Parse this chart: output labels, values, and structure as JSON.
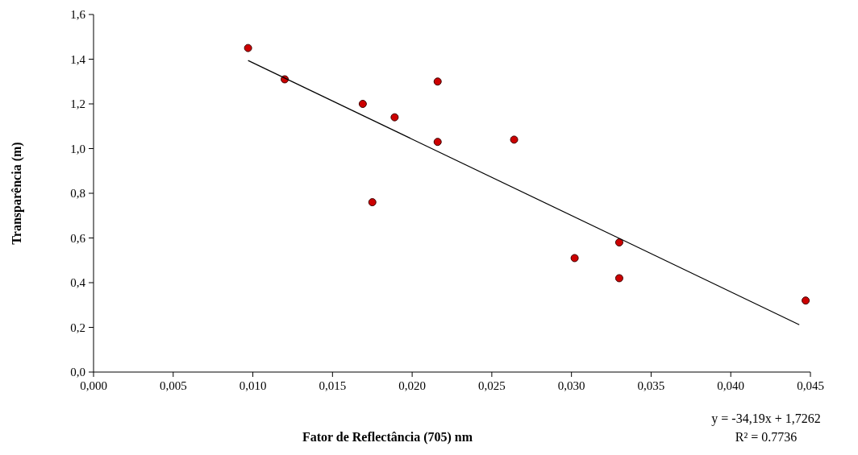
{
  "chart_data": {
    "type": "scatter",
    "xlabel": "Fator de Reflectância (705) nm",
    "ylabel": "Transparência  (m)",
    "xlim": [
      0,
      0.045
    ],
    "ylim": [
      0,
      1.6
    ],
    "xticks": [
      {
        "value": 0,
        "label": "0,000"
      },
      {
        "value": 0.005,
        "label": "0,005"
      },
      {
        "value": 0.01,
        "label": "0,010"
      },
      {
        "value": 0.015,
        "label": "0,015"
      },
      {
        "value": 0.02,
        "label": "0,020"
      },
      {
        "value": 0.025,
        "label": "0,025"
      },
      {
        "value": 0.03,
        "label": "0,030"
      },
      {
        "value": 0.035,
        "label": "0,035"
      },
      {
        "value": 0.04,
        "label": "0,040"
      },
      {
        "value": 0.045,
        "label": "0,045"
      }
    ],
    "yticks": [
      {
        "value": 0,
        "label": "0,0"
      },
      {
        "value": 0.2,
        "label": "0,2"
      },
      {
        "value": 0.4,
        "label": "0,4"
      },
      {
        "value": 0.6,
        "label": "0,6"
      },
      {
        "value": 0.8,
        "label": "0,8"
      },
      {
        "value": 1,
        "label": "1,0"
      },
      {
        "value": 1.2,
        "label": "1,2"
      },
      {
        "value": 1.4,
        "label": "1,4"
      },
      {
        "value": 1.6,
        "label": "1,6"
      }
    ],
    "grid": false,
    "series": [
      {
        "marker": "circle",
        "color": "#cc0000",
        "x": [
          0.0097,
          0.012,
          0.0169,
          0.0189,
          0.0216,
          0.0216,
          0.0175,
          0.0264,
          0.0302,
          0.033,
          0.033,
          0.0447
        ],
        "values": [
          1.45,
          1.31,
          1.2,
          1.14,
          1.3,
          1.03,
          0.76,
          1.04,
          0.51,
          0.58,
          0.42,
          0.32
        ]
      },
      {
        "type": "line",
        "color": "#000000",
        "x": [
          0.0097,
          0.0443
        ],
        "values": [
          1.394,
          0.212
        ]
      }
    ],
    "annotations": [
      "y = -34,19x + 1,7262",
      "R² = 0.7736"
    ]
  }
}
